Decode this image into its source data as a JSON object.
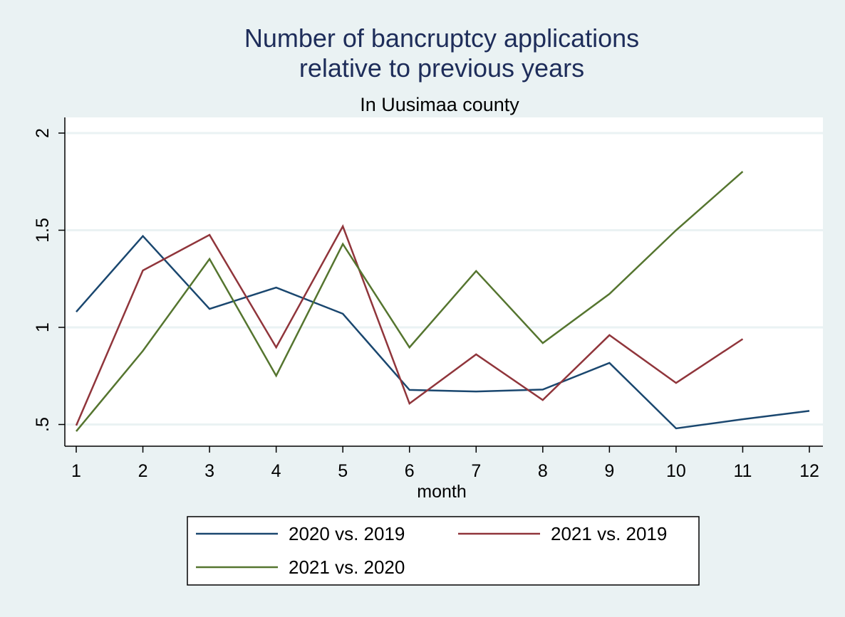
{
  "chart_data": {
    "type": "line",
    "title": "Number of bancruptcy applications\nrelative to previous years",
    "title_lines": [
      "Number of bancruptcy applications",
      "relative to previous years"
    ],
    "subtitle": "In Uusimaa county",
    "xlabel": "month",
    "ylabel": "",
    "x": [
      1,
      2,
      3,
      4,
      5,
      6,
      7,
      8,
      9,
      10,
      11,
      12
    ],
    "xlim": [
      1,
      12
    ],
    "ylim": [
      0.5,
      2
    ],
    "yticks": [
      0.5,
      1,
      1.5,
      2
    ],
    "ytick_labels": [
      ".5",
      "1",
      "1.5",
      "2"
    ],
    "xtick_labels": [
      "1",
      "2",
      "3",
      "4",
      "5",
      "6",
      "7",
      "8",
      "9",
      "10",
      "11",
      "12"
    ],
    "grid": true,
    "legend_position": "bottom",
    "series": [
      {
        "name": "2020 vs. 2019",
        "color": "#1a476f",
        "values": [
          1.08,
          1.47,
          1.095,
          1.205,
          1.07,
          0.678,
          0.67,
          0.68,
          0.817,
          0.48,
          0.527,
          0.57
        ]
      },
      {
        "name": "2021 vs. 2019",
        "color": "#90353b",
        "values": [
          0.495,
          1.293,
          1.476,
          0.897,
          1.52,
          0.608,
          0.861,
          0.626,
          0.96,
          0.714,
          0.94,
          null
        ]
      },
      {
        "name": "2021 vs. 2020",
        "color": "#55752f",
        "values": [
          0.465,
          0.879,
          1.352,
          0.751,
          1.429,
          0.897,
          1.29,
          0.919,
          1.172,
          1.5,
          1.802,
          null
        ]
      }
    ]
  }
}
